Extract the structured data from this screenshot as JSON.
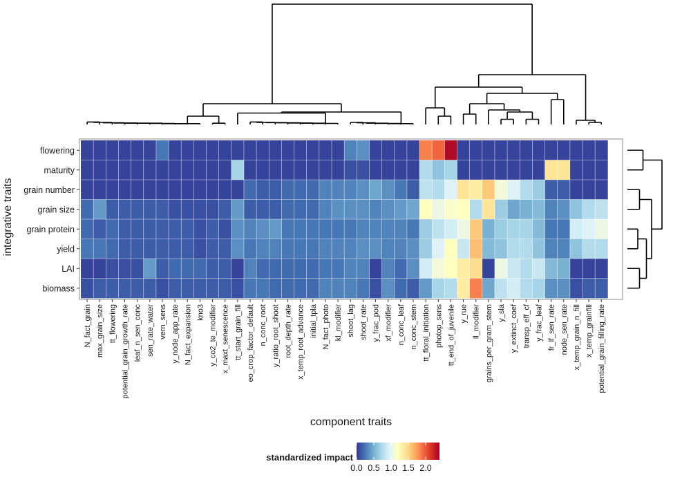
{
  "chart_data": {
    "type": "heatmap",
    "title": "",
    "xlabel": "component traits",
    "ylabel": "integrative traits",
    "x": [
      "N_fact_grain",
      "max_grain_size",
      "tt_flowering",
      "potential_grain_growth_rate",
      "leaf_n_sen_conc",
      "sen_rate_water",
      "vern_sens",
      "y_node_app_rate",
      "N_fact_expansion",
      "kno3",
      "y_co2_te_modifier",
      "x_maxt_senescence",
      "tt_start_grain_fill",
      "eo_crop_factor_default",
      "n_conc_root",
      "y_ratio_root_shoot",
      "root_depth_rate",
      "x_temp_root_advance",
      "initial_tpla",
      "N_fact_photo",
      "kl_modifier",
      "shoot_lag",
      "shoot_rate",
      "y_frac_pod",
      "xf_modifier",
      "n_conc_leaf",
      "n_conc_stem",
      "tt_floral_initiation",
      "photop_sens",
      "tt_end_of_juvenile",
      "y_rue",
      "ll_modifier",
      "grains_per_gram_stem",
      "y_sla",
      "y_extinct_coef",
      "transp_eff_cf",
      "y_frac_leaf",
      "fr_lf_sen_rate",
      "node_sen_rate",
      "x_temp_grain_n_fill",
      "x_temp_grainfill",
      "potential_grain_filling_rate"
    ],
    "y": [
      "flowering",
      "maturity",
      "grain number",
      "grain size",
      "grain protein",
      "yield",
      "LAI",
      "biomass"
    ],
    "values": [
      [
        0.05,
        0.05,
        0.05,
        0.05,
        0.05,
        0.05,
        0.25,
        0.05,
        0.05,
        0.05,
        0.05,
        0.05,
        0.05,
        0.05,
        0.05,
        0.05,
        0.05,
        0.05,
        0.05,
        0.05,
        0.05,
        0.3,
        0.35,
        0.05,
        0.05,
        0.05,
        0.05,
        1.85,
        1.95,
        2.35,
        0.05,
        0.05,
        0.05,
        0.05,
        0.05,
        0.05,
        0.05,
        0.05,
        0.05,
        0.05,
        0.05,
        0.05
      ],
      [
        0.05,
        0.05,
        0.05,
        0.05,
        0.05,
        0.05,
        0.05,
        0.05,
        0.05,
        0.05,
        0.05,
        0.05,
        0.7,
        0.05,
        0.05,
        0.05,
        0.05,
        0.05,
        0.05,
        0.05,
        0.05,
        0.1,
        0.1,
        0.05,
        0.05,
        0.05,
        0.05,
        0.75,
        0.6,
        0.7,
        0.05,
        0.05,
        0.05,
        0.05,
        0.05,
        0.05,
        0.05,
        1.4,
        1.4,
        0.05,
        0.05,
        0.05
      ],
      [
        0.05,
        0.05,
        0.05,
        0.05,
        0.05,
        0.05,
        0.05,
        0.05,
        0.05,
        0.05,
        0.05,
        0.05,
        0.05,
        0.2,
        0.15,
        0.15,
        0.2,
        0.2,
        0.2,
        0.3,
        0.3,
        0.3,
        0.35,
        0.45,
        0.35,
        0.25,
        0.15,
        0.8,
        0.75,
        0.95,
        1.4,
        1.35,
        1.55,
        1.1,
        0.95,
        0.75,
        0.65,
        0.15,
        0.15,
        0.05,
        0.05,
        0.05
      ],
      [
        0.2,
        0.4,
        0.15,
        0.15,
        0.15,
        0.15,
        0.15,
        0.1,
        0.1,
        0.1,
        0.1,
        0.15,
        0.4,
        0.15,
        0.15,
        0.15,
        0.2,
        0.2,
        0.2,
        0.3,
        0.35,
        0.35,
        0.35,
        0.3,
        0.35,
        0.4,
        0.45,
        1.2,
        1.05,
        1.15,
        1.2,
        0.75,
        1.4,
        0.65,
        0.45,
        0.5,
        0.55,
        0.3,
        0.35,
        0.6,
        0.75,
        0.8
      ],
      [
        0.2,
        0.15,
        0.2,
        0.15,
        0.15,
        0.15,
        0.15,
        0.15,
        0.15,
        0.1,
        0.15,
        0.1,
        0.35,
        0.3,
        0.35,
        0.4,
        0.25,
        0.25,
        0.25,
        0.25,
        0.25,
        0.25,
        0.3,
        0.3,
        0.3,
        0.3,
        0.25,
        0.65,
        0.8,
        0.9,
        1.05,
        1.55,
        0.5,
        0.65,
        0.7,
        0.7,
        0.55,
        0.25,
        0.25,
        0.9,
        0.95,
        1.05
      ],
      [
        0.25,
        0.25,
        0.2,
        0.15,
        0.15,
        0.15,
        0.15,
        0.15,
        0.15,
        0.1,
        0.15,
        0.15,
        0.35,
        0.25,
        0.3,
        0.3,
        0.25,
        0.25,
        0.25,
        0.3,
        0.3,
        0.3,
        0.35,
        0.35,
        0.3,
        0.3,
        0.35,
        0.65,
        0.95,
        1.2,
        0.85,
        1.6,
        0.55,
        0.6,
        0.75,
        0.75,
        0.6,
        0.3,
        0.3,
        0.6,
        0.75,
        0.75
      ],
      [
        0.05,
        0.05,
        0.1,
        0.1,
        0.1,
        0.4,
        0.15,
        0.2,
        0.2,
        0.2,
        0.15,
        0.15,
        0.05,
        0.3,
        0.2,
        0.2,
        0.2,
        0.2,
        0.2,
        0.25,
        0.25,
        0.3,
        0.3,
        0.05,
        0.3,
        0.2,
        0.35,
        0.9,
        1.1,
        1.2,
        1.35,
        1.45,
        0.05,
        1.05,
        0.85,
        0.75,
        0.85,
        0.55,
        0.5,
        0.05,
        0.05,
        0.05
      ],
      [
        0.1,
        0.15,
        0.15,
        0.15,
        0.15,
        0.15,
        0.1,
        0.15,
        0.15,
        0.15,
        0.15,
        0.15,
        0.1,
        0.25,
        0.25,
        0.2,
        0.2,
        0.2,
        0.2,
        0.3,
        0.3,
        0.3,
        0.25,
        0.1,
        0.35,
        0.2,
        0.15,
        0.4,
        0.7,
        0.75,
        1.35,
        1.85,
        0.45,
        0.8,
        0.9,
        0.75,
        0.7,
        0.35,
        0.35,
        0.1,
        0.15,
        0.15
      ]
    ],
    "colorbar": {
      "title": "standardized impact",
      "range": [
        0,
        2.4
      ],
      "ticks": [
        0,
        0.5,
        1,
        1.5,
        2
      ],
      "tick_labels": [
        "0.0",
        "0.5",
        "1.0",
        "1.5",
        "2.0"
      ],
      "colors": [
        "#313695",
        "#4575b4",
        "#74add1",
        "#abd9e9",
        "#e0f3f8",
        "#ffffbf",
        "#fee090",
        "#fdae61",
        "#f46d43",
        "#d73027",
        "#a50026"
      ]
    }
  }
}
